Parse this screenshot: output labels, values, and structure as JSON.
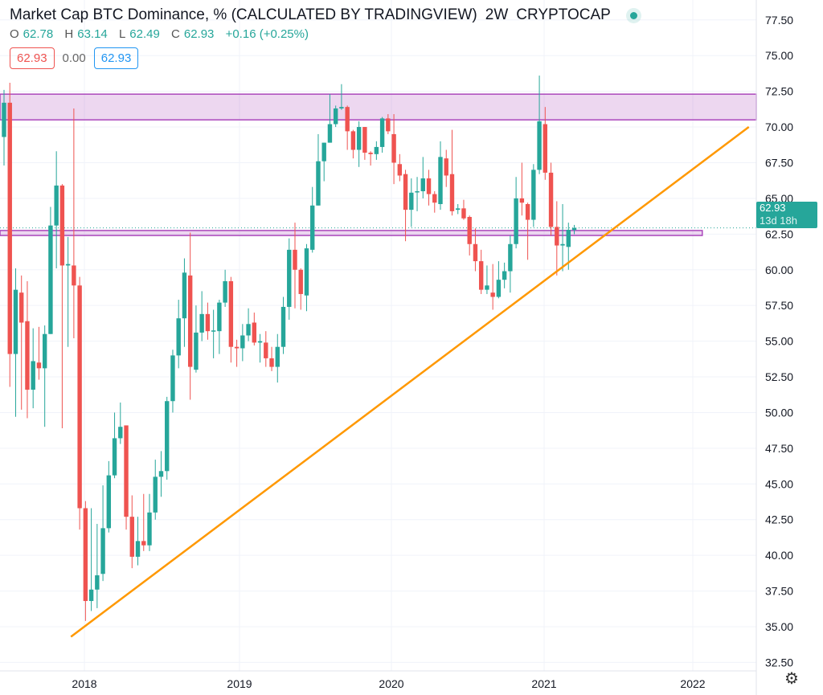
{
  "header": {
    "title": "Market Cap BTC Dominance, % (CALCULATED BY TRADINGVIEW)",
    "interval": "2W",
    "exchange": "CRYPTOCAP",
    "status_color": "#26a69a",
    "ohlc": {
      "o_label": "O",
      "o": "62.78",
      "h_label": "H",
      "h": "63.14",
      "l_label": "L",
      "l": "62.49",
      "c_label": "C",
      "c": "62.93",
      "change": "+0.16 (+0.25%)"
    },
    "bid": "62.93",
    "spread": "0.00",
    "ask": "62.93"
  },
  "price_tag": {
    "value": "62.93",
    "countdown": "13d 18h"
  },
  "settings_icon": "gear-icon",
  "chart_data": {
    "type": "candlestick",
    "title": "Market Cap BTC Dominance, % (CALCULATED BY TRADINGVIEW)",
    "ylim": [
      32.5,
      78.3
    ],
    "y_ticks": [
      "32.50",
      "35.00",
      "37.50",
      "40.00",
      "42.50",
      "45.00",
      "47.50",
      "50.00",
      "52.50",
      "55.00",
      "57.50",
      "60.00",
      "62.50",
      "65.00",
      "67.50",
      "70.00",
      "72.50",
      "75.00",
      "77.50"
    ],
    "x_ticks": [
      "2018",
      "2019",
      "2020",
      "2021",
      "2022"
    ],
    "grid": true,
    "colors": {
      "up": "#26a69a",
      "down": "#ef5350",
      "zone": "#ab47bc",
      "trendline": "#ff9800"
    },
    "columns": [
      "date",
      "open",
      "high",
      "low",
      "close"
    ],
    "candles": [
      [
        "2017-06-05",
        69.3,
        72.6,
        67.3,
        71.7
      ],
      [
        "2017-06-19",
        71.7,
        73.1,
        51.8,
        54.1
      ],
      [
        "2017-07-03",
        54.1,
        60.1,
        49.7,
        58.6
      ],
      [
        "2017-07-17",
        58.4,
        59.6,
        50.2,
        56.3
      ],
      [
        "2017-07-31",
        56.4,
        59.2,
        49.6,
        51.6
      ],
      [
        "2017-08-14",
        51.6,
        55.9,
        50.3,
        53.6
      ],
      [
        "2017-08-28",
        53.5,
        56.0,
        52.3,
        53.1
      ],
      [
        "2017-09-11",
        53.1,
        56.1,
        49.0,
        55.5
      ],
      [
        "2017-09-25",
        55.5,
        64.4,
        55.5,
        63.1
      ],
      [
        "2017-10-09",
        63.1,
        68.3,
        60.1,
        65.9
      ],
      [
        "2017-10-23",
        65.9,
        66.0,
        48.9,
        60.3
      ],
      [
        "2017-11-06",
        60.3,
        62.3,
        54.6,
        60.4
      ],
      [
        "2017-11-20",
        60.3,
        71.3,
        55.2,
        58.9
      ],
      [
        "2017-12-04",
        58.9,
        59.5,
        41.8,
        43.3
      ],
      [
        "2017-12-18",
        43.3,
        43.8,
        35.4,
        36.8
      ],
      [
        "2018-01-01",
        36.8,
        43.3,
        36.1,
        37.6
      ],
      [
        "2018-01-15",
        37.6,
        42.2,
        36.3,
        38.6
      ],
      [
        "2018-01-29",
        38.7,
        44.9,
        38.2,
        41.9
      ],
      [
        "2018-02-12",
        41.9,
        46.6,
        41.6,
        45.6
      ],
      [
        "2018-02-26",
        45.6,
        50.0,
        45.4,
        48.2
      ],
      [
        "2018-03-12",
        48.2,
        50.7,
        47.8,
        49.0
      ],
      [
        "2018-03-26",
        49.1,
        49.1,
        41.8,
        42.7
      ],
      [
        "2018-04-09",
        42.7,
        44.2,
        39.1,
        39.9
      ],
      [
        "2018-04-23",
        39.9,
        42.7,
        39.3,
        41.0
      ],
      [
        "2018-05-07",
        41.0,
        44.3,
        40.3,
        40.7
      ],
      [
        "2018-05-21",
        40.7,
        44.3,
        40.3,
        43.0
      ],
      [
        "2018-06-04",
        43.0,
        46.7,
        42.5,
        45.5
      ],
      [
        "2018-06-18",
        45.5,
        47.3,
        44.1,
        45.9
      ],
      [
        "2018-07-02",
        45.9,
        51.1,
        45.3,
        50.8
      ],
      [
        "2018-07-16",
        50.8,
        54.4,
        50.0,
        54.0
      ],
      [
        "2018-07-30",
        54.0,
        57.9,
        53.1,
        56.6
      ],
      [
        "2018-08-13",
        56.6,
        60.8,
        54.6,
        59.8
      ],
      [
        "2018-08-27",
        59.6,
        62.6,
        50.9,
        53.2
      ],
      [
        "2018-09-10",
        53.0,
        57.5,
        52.8,
        55.6
      ],
      [
        "2018-09-24",
        55.6,
        58.5,
        55.0,
        56.9
      ],
      [
        "2018-10-08",
        56.9,
        57.7,
        55.1,
        55.7
      ],
      [
        "2018-10-22",
        55.7,
        57.2,
        53.8,
        55.75
      ],
      [
        "2018-11-05",
        55.7,
        57.9,
        54.1,
        57.7
      ],
      [
        "2018-11-19",
        57.7,
        60.0,
        57.4,
        59.2
      ],
      [
        "2018-12-03",
        59.2,
        59.5,
        53.5,
        54.6
      ],
      [
        "2018-12-17",
        54.6,
        55.1,
        53.2,
        54.5
      ],
      [
        "2018-12-31",
        54.5,
        56.2,
        53.6,
        55.4
      ],
      [
        "2019-01-14",
        55.4,
        57.3,
        55.0,
        56.2
      ],
      [
        "2019-01-28",
        56.3,
        57.0,
        54.7,
        54.9
      ],
      [
        "2019-02-11",
        54.9,
        55.5,
        53.5,
        55.0
      ],
      [
        "2019-02-25",
        54.9,
        55.7,
        53.2,
        53.8
      ],
      [
        "2019-03-11",
        53.8,
        54.6,
        52.9,
        53.2
      ],
      [
        "2019-03-25",
        53.2,
        55.5,
        52.1,
        54.6
      ],
      [
        "2019-04-08",
        54.6,
        58.1,
        54.1,
        57.4
      ],
      [
        "2019-04-22",
        57.4,
        62.2,
        56.5,
        61.4
      ],
      [
        "2019-05-06",
        61.4,
        63.3,
        57.3,
        60.0
      ],
      [
        "2019-05-20",
        60.0,
        60.1,
        57.2,
        58.3
      ],
      [
        "2019-06-03",
        58.2,
        61.8,
        57.1,
        61.5
      ],
      [
        "2019-06-17",
        61.4,
        65.8,
        61.2,
        64.5
      ],
      [
        "2019-07-01",
        64.5,
        69.5,
        64.5,
        67.6
      ],
      [
        "2019-07-15",
        67.6,
        68.9,
        66.2,
        68.9
      ],
      [
        "2019-07-29",
        68.9,
        72.3,
        68.9,
        70.2
      ],
      [
        "2019-08-12",
        70.2,
        71.5,
        70.0,
        71.3
      ],
      [
        "2019-08-26",
        71.3,
        73.0,
        71.2,
        71.4
      ],
      [
        "2019-09-09",
        71.4,
        71.5,
        68.4,
        69.7
      ],
      [
        "2019-09-23",
        69.7,
        69.8,
        67.8,
        68.4
      ],
      [
        "2019-10-07",
        68.4,
        70.4,
        67.2,
        70.0
      ],
      [
        "2019-10-21",
        70.0,
        70.0,
        67.7,
        68.2
      ],
      [
        "2019-11-04",
        68.2,
        68.3,
        67.3,
        68.1
      ],
      [
        "2019-11-18",
        68.1,
        69.0,
        67.7,
        68.6
      ],
      [
        "2019-12-02",
        68.6,
        70.7,
        68.2,
        70.6
      ],
      [
        "2019-12-16",
        70.6,
        70.9,
        69.5,
        69.7
      ],
      [
        "2019-12-30",
        69.5,
        70.9,
        66.0,
        67.5
      ],
      [
        "2020-01-13",
        67.4,
        68.1,
        66.2,
        66.6
      ],
      [
        "2020-01-27",
        66.7,
        67.0,
        62.0,
        64.2
      ],
      [
        "2020-02-10",
        64.2,
        66.4,
        63.0,
        65.4
      ],
      [
        "2020-02-24",
        65.5,
        66.5,
        64.1,
        65.5
      ],
      [
        "2020-03-09",
        65.5,
        67.9,
        65.0,
        66.4
      ],
      [
        "2020-03-23",
        66.4,
        67.0,
        64.5,
        65.3
      ],
      [
        "2020-04-06",
        65.3,
        65.5,
        64.0,
        64.7
      ],
      [
        "2020-04-20",
        64.6,
        69.0,
        64.2,
        67.9
      ],
      [
        "2020-05-04",
        67.8,
        68.4,
        65.8,
        66.6
      ],
      [
        "2020-05-18",
        66.7,
        69.8,
        63.8,
        64.1
      ],
      [
        "2020-06-01",
        64.2,
        64.6,
        63.9,
        64.3
      ],
      [
        "2020-06-15",
        64.3,
        64.9,
        63.5,
        63.6
      ],
      [
        "2020-06-29",
        63.7,
        63.8,
        61.0,
        61.8
      ],
      [
        "2020-07-13",
        61.8,
        62.9,
        59.9,
        60.6
      ],
      [
        "2020-07-27",
        60.6,
        61.4,
        58.3,
        58.6
      ],
      [
        "2020-08-10",
        58.6,
        60.3,
        58.3,
        58.9
      ],
      [
        "2020-08-24",
        58.4,
        60.4,
        57.2,
        58.1
      ],
      [
        "2020-09-07",
        58.1,
        60.6,
        58.0,
        59.3
      ],
      [
        "2020-09-21",
        59.3,
        60.5,
        58.7,
        59.9
      ],
      [
        "2020-10-05",
        59.9,
        62.4,
        58.4,
        61.8
      ],
      [
        "2020-10-19",
        61.8,
        66.5,
        61.5,
        65.0
      ],
      [
        "2020-11-02",
        65.0,
        67.5,
        63.8,
        64.7
      ],
      [
        "2020-11-16",
        64.6,
        64.7,
        60.7,
        63.5
      ],
      [
        "2020-11-30",
        63.5,
        67.4,
        63.0,
        67.0
      ],
      [
        "2020-12-14",
        67.0,
        73.6,
        66.7,
        70.4
      ],
      [
        "2020-12-28",
        70.2,
        71.4,
        66.3,
        66.8
      ],
      [
        "2021-01-11",
        66.8,
        67.5,
        62.4,
        63.0
      ],
      [
        "2021-01-25",
        63.0,
        64.8,
        59.6,
        61.7
      ],
      [
        "2021-02-08",
        61.7,
        64.6,
        59.9,
        61.8
      ],
      [
        "2021-02-22",
        61.6,
        63.3,
        60.0,
        62.8
      ],
      [
        "2021-03-08",
        62.78,
        63.14,
        62.49,
        62.93
      ]
    ],
    "zones": [
      {
        "from_date": "2017-06-05",
        "to_date": "2022-06-01",
        "low": 70.5,
        "high": 72.3
      },
      {
        "from_date": "2017-06-05",
        "to_date": "2022-01-10",
        "low": 62.4,
        "high": 62.75
      }
    ],
    "trendline": {
      "from": [
        "2017-11-13",
        34.3
      ],
      "to": [
        "2022-05-02",
        70.0
      ]
    },
    "last_price": 62.93
  }
}
